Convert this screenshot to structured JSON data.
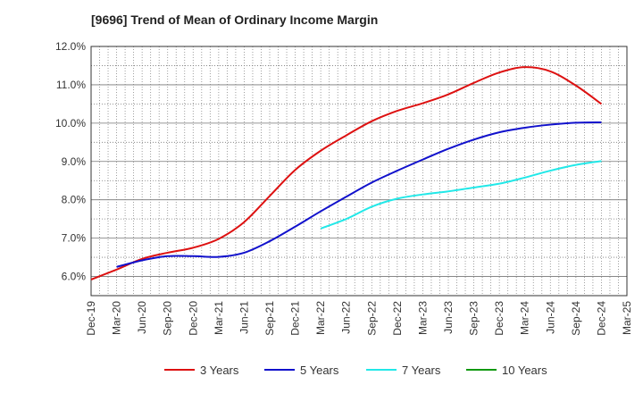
{
  "chart_data": {
    "type": "line",
    "title": "[9696]  Trend of Mean of Ordinary Income Margin",
    "xlabel": "",
    "ylabel": "",
    "x_ticks": [
      "Dec-19",
      "Mar-20",
      "Jun-20",
      "Sep-20",
      "Dec-20",
      "Mar-21",
      "Jun-21",
      "Sep-21",
      "Dec-21",
      "Mar-22",
      "Jun-22",
      "Sep-22",
      "Dec-22",
      "Mar-23",
      "Jun-23",
      "Sep-23",
      "Dec-23",
      "Mar-24",
      "Jun-24",
      "Sep-24",
      "Dec-24",
      "Mar-25"
    ],
    "y_ticks": [
      "6.0%",
      "7.0%",
      "8.0%",
      "9.0%",
      "10.0%",
      "11.0%",
      "12.0%"
    ],
    "ylim": [
      5.5,
      12.0
    ],
    "grid": true,
    "legend_position": "bottom",
    "series": [
      {
        "name": "3 Years",
        "color": "#dd1111",
        "points": [
          [
            "Dec-19",
            5.92
          ],
          [
            "Mar-20",
            6.18
          ],
          [
            "Jun-20",
            6.46
          ],
          [
            "Sep-20",
            6.62
          ],
          [
            "Dec-20",
            6.75
          ],
          [
            "Mar-21",
            6.98
          ],
          [
            "Jun-21",
            7.42
          ],
          [
            "Sep-21",
            8.1
          ],
          [
            "Dec-21",
            8.78
          ],
          [
            "Mar-22",
            9.28
          ],
          [
            "Jun-22",
            9.68
          ],
          [
            "Sep-22",
            10.05
          ],
          [
            "Dec-22",
            10.32
          ],
          [
            "Mar-23",
            10.52
          ],
          [
            "Jun-23",
            10.75
          ],
          [
            "Sep-23",
            11.05
          ],
          [
            "Dec-23",
            11.32
          ],
          [
            "Mar-24",
            11.46
          ],
          [
            "Jun-24",
            11.35
          ],
          [
            "Sep-24",
            10.98
          ],
          [
            "Dec-24",
            10.5
          ]
        ]
      },
      {
        "name": "5 Years",
        "color": "#1111cc",
        "points": [
          [
            "Mar-20",
            6.25
          ],
          [
            "Jun-20",
            6.42
          ],
          [
            "Sep-20",
            6.53
          ],
          [
            "Dec-20",
            6.53
          ],
          [
            "Mar-21",
            6.51
          ],
          [
            "Jun-21",
            6.62
          ],
          [
            "Sep-21",
            6.92
          ],
          [
            "Dec-21",
            7.3
          ],
          [
            "Mar-22",
            7.7
          ],
          [
            "Jun-22",
            8.08
          ],
          [
            "Sep-22",
            8.45
          ],
          [
            "Dec-22",
            8.76
          ],
          [
            "Mar-23",
            9.05
          ],
          [
            "Jun-23",
            9.33
          ],
          [
            "Sep-23",
            9.57
          ],
          [
            "Dec-23",
            9.76
          ],
          [
            "Mar-24",
            9.88
          ],
          [
            "Jun-24",
            9.96
          ],
          [
            "Sep-24",
            10.01
          ],
          [
            "Dec-24",
            10.02
          ]
        ]
      },
      {
        "name": "7 Years",
        "color": "#22e8e8",
        "points": [
          [
            "Mar-22",
            7.25
          ],
          [
            "Jun-22",
            7.5
          ],
          [
            "Sep-22",
            7.82
          ],
          [
            "Dec-22",
            8.03
          ],
          [
            "Mar-23",
            8.14
          ],
          [
            "Jun-23",
            8.22
          ],
          [
            "Sep-23",
            8.32
          ],
          [
            "Dec-23",
            8.42
          ],
          [
            "Mar-24",
            8.58
          ],
          [
            "Jun-24",
            8.76
          ],
          [
            "Sep-24",
            8.91
          ],
          [
            "Dec-24",
            9.01
          ]
        ]
      },
      {
        "name": "10 Years",
        "color": "#119911",
        "points": []
      }
    ]
  }
}
